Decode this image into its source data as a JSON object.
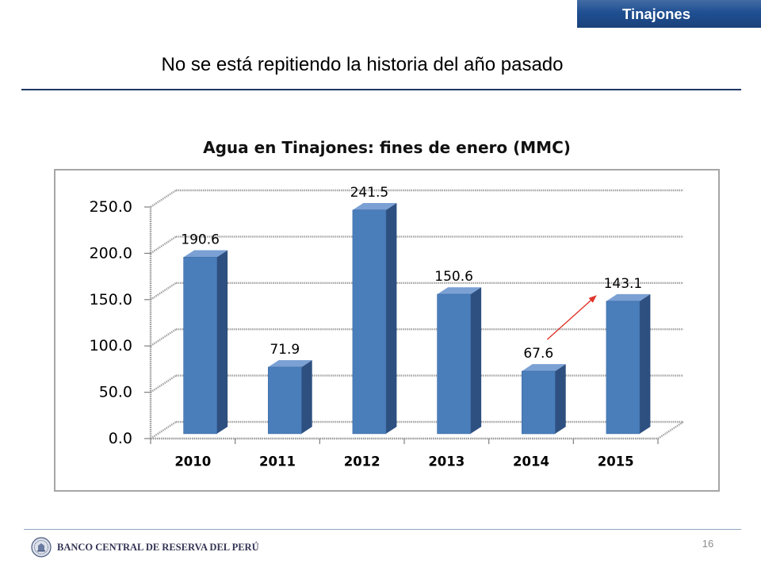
{
  "header": {
    "section_tag": "Tinajones"
  },
  "slide": {
    "title": "No se está repitiendo la historia del año pasado",
    "page_number": "16"
  },
  "footer": {
    "institution": "BANCO CENTRAL DE RESERVA DEL PERÚ",
    "logo_icon": "bcrp-seal-icon"
  },
  "colors": {
    "banner": "#1f4f92",
    "title_rule": "#1f3864",
    "footer_rule": "#8ea3c4",
    "bar_front": "#4a7ebb",
    "bar_side": "#2e5080",
    "bar_top": "#7aa0d4",
    "trend_arrow": "#e0362c"
  },
  "chart_data": {
    "type": "bar",
    "three_d": true,
    "title": "Agua en Tinajones: fines de enero (MMC)",
    "xlabel": "",
    "ylabel": "",
    "categories": [
      "2010",
      "2011",
      "2012",
      "2013",
      "2014",
      "2015"
    ],
    "values": [
      190.6,
      71.9,
      241.5,
      150.6,
      67.6,
      143.1
    ],
    "ylim": [
      0,
      250
    ],
    "yticks": [
      "0.0",
      "50.0",
      "100.0",
      "150.0",
      "200.0",
      "250.0"
    ],
    "grid": true,
    "trend_arrow": {
      "from_index": 4,
      "to_index": 5
    }
  }
}
